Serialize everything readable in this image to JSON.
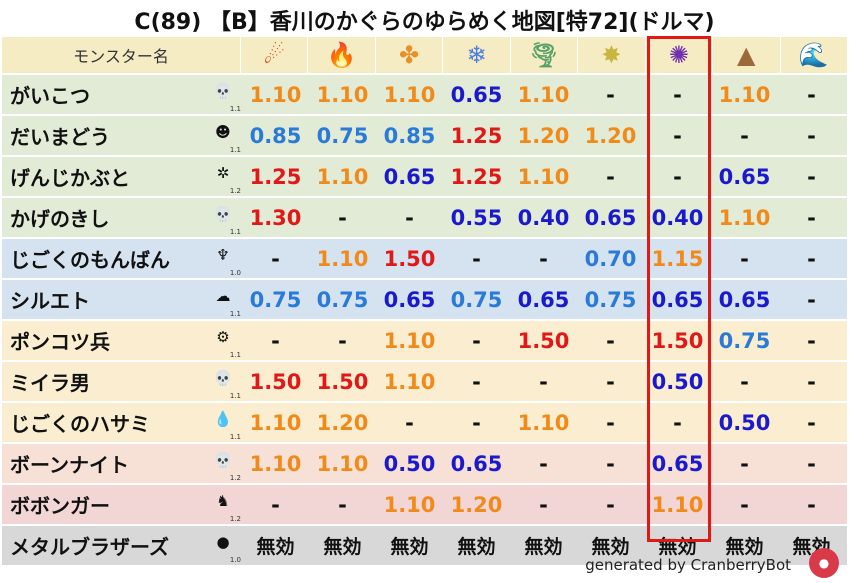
{
  "title": "C(89) 【B】香川のかぐらのゆらめく地図[特72](ドルマ)",
  "header": {
    "name_label": "モンスター名",
    "elements": [
      {
        "icon": "fire-ball-icon",
        "glyph": "☄",
        "color": "#e03a1a"
      },
      {
        "icon": "flame-icon",
        "glyph": "🔥",
        "color": "#f0621e"
      },
      {
        "icon": "clover-icon",
        "glyph": "✤",
        "color": "#e8902a"
      },
      {
        "icon": "ice-crystal-icon",
        "glyph": "❄",
        "color": "#4a7fe0"
      },
      {
        "icon": "tornado-icon",
        "glyph": "🌪",
        "color": "#5aa06a"
      },
      {
        "icon": "light-sparkle-icon",
        "glyph": "✸",
        "color": "#c8b640"
      },
      {
        "icon": "dark-swirl-icon",
        "glyph": "✺",
        "color": "#7030b0"
      },
      {
        "icon": "rock-icon",
        "glyph": "▲",
        "color": "#9a6a3a"
      },
      {
        "icon": "wave-icon",
        "glyph": "🌊",
        "color": "#2a8ad8"
      }
    ]
  },
  "rows": [
    {
      "name": "がいこつ",
      "icon": "skull-icon",
      "glyph": "💀",
      "level": "1.1",
      "bg": "#e2ebd6",
      "values": [
        "1.10",
        "1.10",
        "1.10",
        "0.65",
        "1.10",
        "-",
        "-",
        "1.10",
        "-"
      ]
    },
    {
      "name": "だいまどう",
      "icon": "dark-mage-icon",
      "glyph": "☻",
      "level": "1.1",
      "bg": "#e2ebd6",
      "values": [
        "0.85",
        "0.75",
        "0.85",
        "1.25",
        "1.20",
        "1.20",
        "-",
        "-",
        "-"
      ]
    },
    {
      "name": "げんじかぶと",
      "icon": "beetle-icon",
      "glyph": "✲",
      "level": "1.2",
      "bg": "#e2ebd6",
      "values": [
        "1.25",
        "1.10",
        "0.65",
        "1.25",
        "1.10",
        "-",
        "-",
        "0.65",
        "-"
      ]
    },
    {
      "name": "かげのきし",
      "icon": "skull-icon",
      "glyph": "💀",
      "level": "1.1",
      "bg": "#e2ebd6",
      "values": [
        "1.30",
        "-",
        "-",
        "0.55",
        "0.40",
        "0.65",
        "0.40",
        "1.10",
        "-"
      ]
    },
    {
      "name": "じごくのもんばん",
      "icon": "demon-icon",
      "glyph": "♆",
      "level": "1.0",
      "bg": "#d5e3f1",
      "values": [
        "-",
        "1.10",
        "1.50",
        "-",
        "-",
        "0.70",
        "1.15",
        "-",
        "-"
      ]
    },
    {
      "name": "シルエト",
      "icon": "ghost-icon",
      "glyph": "☁",
      "level": "1.1",
      "bg": "#d5e3f1",
      "values": [
        "0.75",
        "0.75",
        "0.65",
        "0.75",
        "0.65",
        "0.75",
        "0.65",
        "0.65",
        "-"
      ]
    },
    {
      "name": "ポンコツ兵",
      "icon": "gear-icon",
      "glyph": "⚙",
      "level": "1.1",
      "bg": "#fbeed0",
      "values": [
        "-",
        "-",
        "1.10",
        "-",
        "1.50",
        "-",
        "1.50",
        "0.75",
        "-"
      ]
    },
    {
      "name": "ミイラ男",
      "icon": "skull-icon",
      "glyph": "💀",
      "level": "1.1",
      "bg": "#fbeed0",
      "values": [
        "1.50",
        "1.50",
        "1.10",
        "-",
        "-",
        "-",
        "0.50",
        "-",
        "-"
      ]
    },
    {
      "name": "じごくのハサミ",
      "icon": "water-drop-icon",
      "glyph": "💧",
      "level": "1.1",
      "bg": "#fbeed0",
      "values": [
        "1.10",
        "1.20",
        "-",
        "-",
        "1.10",
        "-",
        "-",
        "0.50",
        "-"
      ]
    },
    {
      "name": "ボーンナイト",
      "icon": "skull-icon",
      "glyph": "💀",
      "level": "1.2",
      "bg": "#f7e0d6",
      "values": [
        "1.10",
        "1.10",
        "0.50",
        "0.65",
        "-",
        "-",
        "0.65",
        "-",
        "-"
      ]
    },
    {
      "name": "ボボンガー",
      "icon": "dragon-icon",
      "glyph": "♞",
      "level": "1.2",
      "bg": "#f2d5d5",
      "values": [
        "-",
        "-",
        "1.10",
        "1.20",
        "-",
        "-",
        "1.10",
        "-",
        "-"
      ]
    },
    {
      "name": "メタルブラザーズ",
      "icon": "metal-slime-icon",
      "glyph": "●",
      "level": "1.0",
      "bg": "#d8d8d8",
      "values": [
        "無効",
        "無効",
        "無効",
        "無効",
        "無効",
        "無効",
        "無効",
        "無効",
        "無効"
      ]
    }
  ],
  "header_bg": "#f5ecc4",
  "colors": {
    "high": "#e01818",
    "mid": "#f08a1a",
    "low": "#1a1acc",
    "lowmid": "#2a7ad8",
    "none": "#111111"
  },
  "footer": "generated by CranberryBot"
}
